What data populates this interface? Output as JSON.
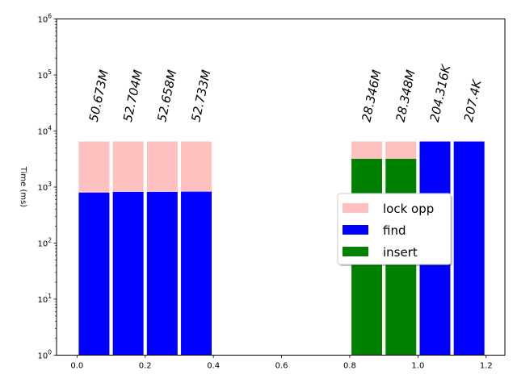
{
  "chart_data": {
    "type": "bar",
    "stacked": true,
    "xlabel": "",
    "ylabel": "Time (ms)",
    "xlim": [
      -0.06,
      1.255
    ],
    "ylim": [
      1,
      1000000
    ],
    "y_scale": "log",
    "x_ticks": [
      0.0,
      0.2,
      0.4,
      0.6,
      0.8,
      1.0,
      1.2
    ],
    "x_tick_labels": [
      "0.0",
      "0.2",
      "0.4",
      "0.6",
      "0.8",
      "1.0",
      "1.2"
    ],
    "y_ticks": [
      1,
      10,
      100,
      1000,
      10000,
      100000,
      1000000
    ],
    "y_tick_labels": [
      {
        "base": "10",
        "exp": "0"
      },
      {
        "base": "10",
        "exp": "1"
      },
      {
        "base": "10",
        "exp": "2"
      },
      {
        "base": "10",
        "exp": "3"
      },
      {
        "base": "10",
        "exp": "4"
      },
      {
        "base": "10",
        "exp": "5"
      },
      {
        "base": "10",
        "exp": "6"
      }
    ],
    "grid": false,
    "legend_position": "center-right",
    "bar_width": 0.09,
    "bars": [
      {
        "x": 0.05,
        "segments": [
          {
            "series": "find",
            "from": 1,
            "to": 800
          },
          {
            "series": "lock opp",
            "from": 800,
            "to": 6500
          }
        ],
        "label": "50.673M"
      },
      {
        "x": 0.15,
        "segments": [
          {
            "series": "find",
            "from": 1,
            "to": 820
          },
          {
            "series": "lock opp",
            "from": 820,
            "to": 6500
          }
        ],
        "label": "52.704M"
      },
      {
        "x": 0.25,
        "segments": [
          {
            "series": "find",
            "from": 1,
            "to": 820
          },
          {
            "series": "lock opp",
            "from": 820,
            "to": 6500
          }
        ],
        "label": "52.658M"
      },
      {
        "x": 0.35,
        "segments": [
          {
            "series": "find",
            "from": 1,
            "to": 830
          },
          {
            "series": "lock opp",
            "from": 830,
            "to": 6500
          }
        ],
        "label": "52.733M"
      },
      {
        "x": 0.85,
        "segments": [
          {
            "series": "insert",
            "from": 1,
            "to": 3200
          },
          {
            "series": "lock opp",
            "from": 3200,
            "to": 6500
          }
        ],
        "label": "28.346M"
      },
      {
        "x": 0.95,
        "segments": [
          {
            "series": "insert",
            "from": 1,
            "to": 3200
          },
          {
            "series": "lock opp",
            "from": 3200,
            "to": 6500
          }
        ],
        "label": "28.348M"
      },
      {
        "x": 1.05,
        "segments": [
          {
            "series": "find",
            "from": 1,
            "to": 6500
          }
        ],
        "label": "204.316K"
      },
      {
        "x": 1.15,
        "segments": [
          {
            "series": "find",
            "from": 1,
            "to": 6500
          }
        ],
        "label": "207.4K"
      }
    ],
    "series": [
      {
        "name": "lock opp",
        "color": "#ffc0c0"
      },
      {
        "name": "find",
        "color": "#0000ff"
      },
      {
        "name": "insert",
        "color": "#008000"
      }
    ]
  }
}
